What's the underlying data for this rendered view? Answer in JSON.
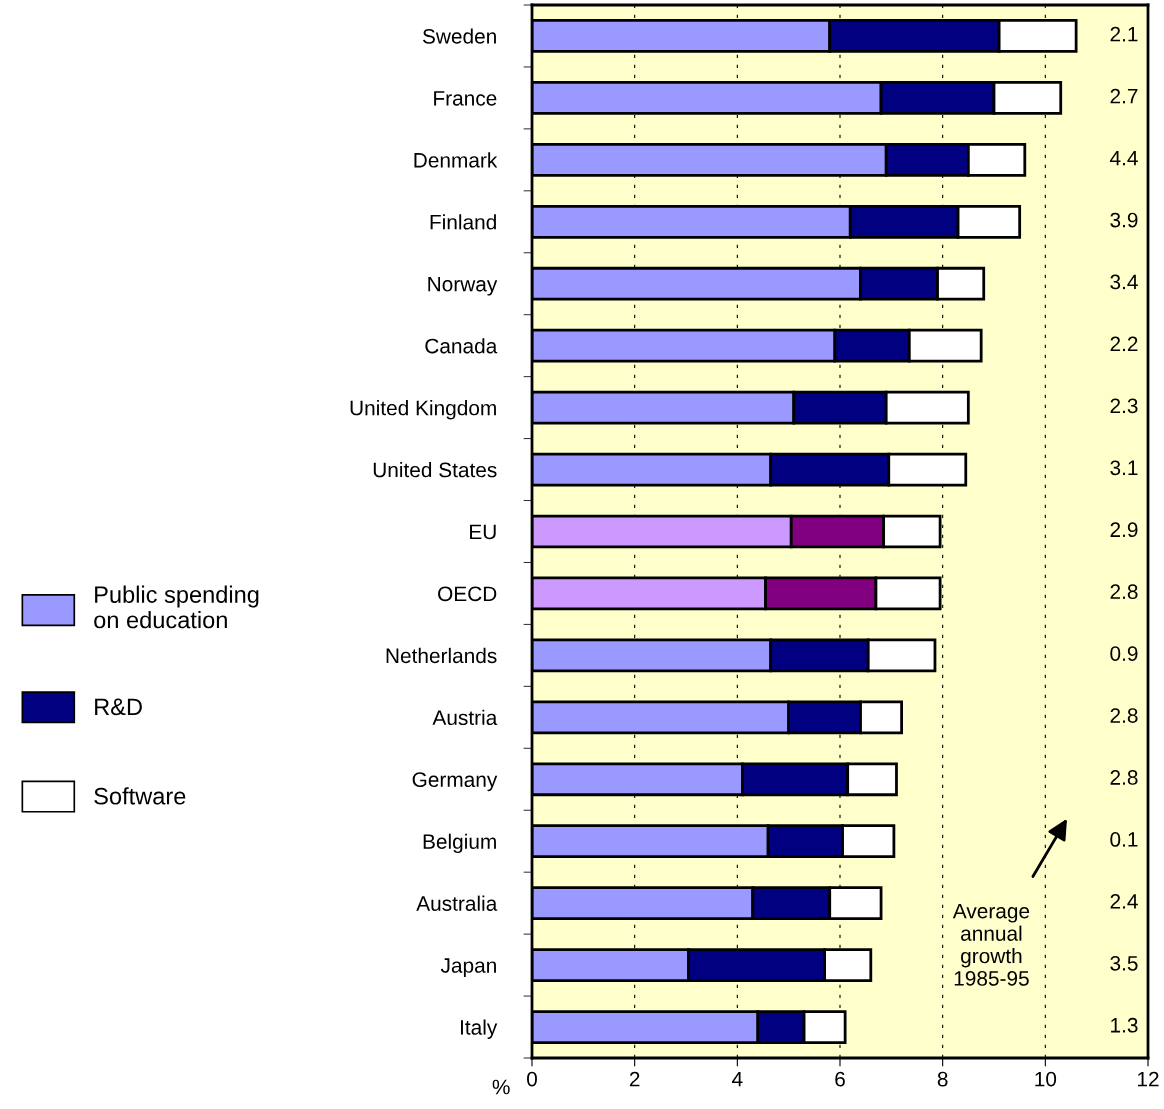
{
  "chart_data": {
    "type": "bar",
    "orientation": "horizontal",
    "stacked": true,
    "categories": [
      "Sweden",
      "France",
      "Denmark",
      "Finland",
      "Norway",
      "Canada",
      "United Kingdom",
      "United States",
      "EU",
      "OECD",
      "Netherlands",
      "Austria",
      "Germany",
      "Belgium",
      "Australia",
      "Japan",
      "Italy"
    ],
    "series": [
      {
        "name": "Public spending on education",
        "color": "#9999ff",
        "colors": [
          "#9999ff",
          "#9999ff",
          "#9999ff",
          "#9999ff",
          "#9999ff",
          "#9999ff",
          "#9999ff",
          "#9999ff",
          "#cc99ff",
          "#cc99ff",
          "#9999ff",
          "#9999ff",
          "#9999ff",
          "#9999ff",
          "#9999ff",
          "#9999ff",
          "#9999ff"
        ],
        "values": [
          5.8,
          6.8,
          6.9,
          6.2,
          6.4,
          5.9,
          5.1,
          4.65,
          5.05,
          4.55,
          4.65,
          5.0,
          4.1,
          4.6,
          4.3,
          3.05,
          4.4
        ]
      },
      {
        "name": "R&D",
        "color": "#000080",
        "colors": [
          "#000080",
          "#000080",
          "#000080",
          "#000080",
          "#000080",
          "#000080",
          "#000080",
          "#000080",
          "#800080",
          "#800080",
          "#000080",
          "#000080",
          "#000080",
          "#000080",
          "#000080",
          "#000080",
          "#000080"
        ],
        "values": [
          3.3,
          2.2,
          1.6,
          2.1,
          1.5,
          1.45,
          1.8,
          2.3,
          1.8,
          2.15,
          1.9,
          1.4,
          2.05,
          1.45,
          1.5,
          2.65,
          0.9
        ]
      },
      {
        "name": "Software",
        "color": "#ffffff",
        "values": [
          1.5,
          1.3,
          1.1,
          1.2,
          0.9,
          1.4,
          1.6,
          1.5,
          1.1,
          1.25,
          1.3,
          0.8,
          0.95,
          1.0,
          1.0,
          0.9,
          0.8
        ]
      }
    ],
    "xlabel": "%",
    "xlim": [
      0,
      12
    ],
    "xticks": [
      0,
      2,
      4,
      6,
      8,
      10,
      12
    ],
    "grid": "x",
    "legend": "left",
    "annotations": [
      "2.1",
      "2.7",
      "4.4",
      "3.9",
      "3.4",
      "2.2",
      "2.3",
      "3.1",
      "2.9",
      "2.8",
      "0.9",
      "2.8",
      "2.8",
      "0.1",
      "2.4",
      "3.5",
      "1.3",
      "Average\nannual\ngrowth\n1985-95"
    ]
  }
}
